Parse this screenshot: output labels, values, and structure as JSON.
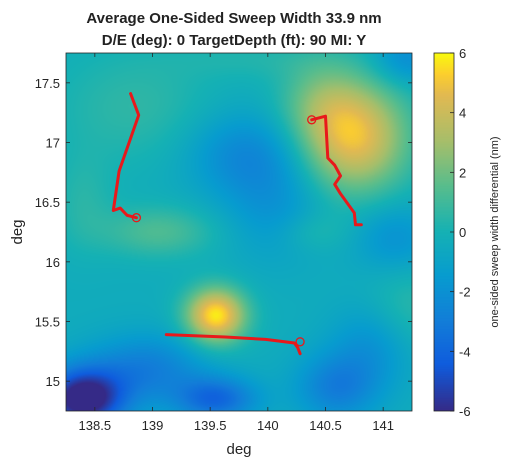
{
  "chart_data": {
    "type": "heatmap",
    "title_line1": "Average One-Sided Sweep Width 33.9 nm",
    "title_line2": "D/E (deg): 0 TargetDepth (ft): 90 MI: Y",
    "xlabel": "deg",
    "ylabel": "deg",
    "colorbar_label": "one-sided sweep width differential (nm)",
    "xlim": [
      138.25,
      141.25
    ],
    "ylim": [
      14.75,
      17.75
    ],
    "clim": [
      -6,
      6
    ],
    "colormap": "parula",
    "x_ticks": [
      {
        "value": 138.5,
        "label": "138.5"
      },
      {
        "value": 139,
        "label": "139"
      },
      {
        "value": 139.5,
        "label": "139.5"
      },
      {
        "value": 140,
        "label": "140"
      },
      {
        "value": 140.5,
        "label": "140.5"
      },
      {
        "value": 141,
        "label": "141"
      }
    ],
    "y_ticks": [
      {
        "value": 15,
        "label": "15"
      },
      {
        "value": 15.5,
        "label": "15.5"
      },
      {
        "value": 16,
        "label": "16"
      },
      {
        "value": 16.5,
        "label": "16.5"
      },
      {
        "value": 17,
        "label": "17"
      },
      {
        "value": 17.5,
        "label": "17.5"
      }
    ],
    "colorbar_ticks": [
      {
        "value": 6,
        "label": "6"
      },
      {
        "value": 4,
        "label": "4"
      },
      {
        "value": 2,
        "label": "2"
      },
      {
        "value": 0,
        "label": "0"
      },
      {
        "value": -2,
        "label": "-2"
      },
      {
        "value": -4,
        "label": "-4"
      },
      {
        "value": -6,
        "label": "-6"
      }
    ],
    "field": {
      "base": -0.4,
      "components": [
        {
          "x": 140.75,
          "y": 17.05,
          "sx": 0.32,
          "sy": 0.32,
          "a": 5.2
        },
        {
          "x": 140.45,
          "y": 17.35,
          "sx": 0.25,
          "sy": 0.25,
          "a": 1.6
        },
        {
          "x": 139.55,
          "y": 15.55,
          "sx": 0.18,
          "sy": 0.16,
          "a": 6.2
        },
        {
          "x": 139.05,
          "y": 16.25,
          "sx": 0.35,
          "sy": 0.15,
          "a": 1.7
        },
        {
          "x": 138.4,
          "y": 16.5,
          "sx": 0.18,
          "sy": 0.28,
          "a": 0.8
        },
        {
          "x": 138.85,
          "y": 17.3,
          "sx": 0.5,
          "sy": 0.35,
          "a": 1.0
        },
        {
          "x": 139.9,
          "y": 17.7,
          "sx": 0.5,
          "sy": 0.12,
          "a": 0.6
        },
        {
          "x": 141.2,
          "y": 15.6,
          "sx": 0.25,
          "sy": 0.25,
          "a": 1.0
        },
        {
          "x": 140.4,
          "y": 16.25,
          "sx": 0.22,
          "sy": 0.12,
          "a": 0.8
        },
        {
          "x": 138.4,
          "y": 14.85,
          "sx": 0.25,
          "sy": 0.18,
          "a": -6.5
        },
        {
          "x": 138.95,
          "y": 15.1,
          "sx": 0.35,
          "sy": 0.2,
          "a": -2.5
        },
        {
          "x": 139.55,
          "y": 14.85,
          "sx": 0.25,
          "sy": 0.13,
          "a": -3.5
        },
        {
          "x": 140.6,
          "y": 14.95,
          "sx": 0.25,
          "sy": 0.2,
          "a": -2.5
        },
        {
          "x": 139.8,
          "y": 16.9,
          "sx": 0.35,
          "sy": 0.25,
          "a": -2.0
        },
        {
          "x": 140.05,
          "y": 16.45,
          "sx": 0.3,
          "sy": 0.3,
          "a": -1.3
        },
        {
          "x": 141.1,
          "y": 16.2,
          "sx": 0.25,
          "sy": 0.2,
          "a": -1.5
        },
        {
          "x": 141.2,
          "y": 17.7,
          "sx": 0.2,
          "sy": 0.15,
          "a": -1.8
        },
        {
          "x": 140.9,
          "y": 15.3,
          "sx": 0.25,
          "sy": 0.25,
          "a": -1.5
        }
      ]
    },
    "tracks": [
      {
        "points": [
          [
            138.81,
            17.41
          ],
          [
            138.88,
            17.23
          ],
          [
            138.71,
            16.76
          ],
          [
            138.66,
            16.43
          ],
          [
            138.72,
            16.45
          ],
          [
            138.78,
            16.39
          ],
          [
            138.86,
            16.37
          ]
        ],
        "start_marker": [
          138.86,
          16.37
        ]
      },
      {
        "points": [
          [
            140.38,
            17.19
          ],
          [
            140.5,
            17.22
          ],
          [
            140.52,
            16.87
          ],
          [
            140.58,
            16.81
          ],
          [
            140.63,
            16.72
          ],
          [
            140.58,
            16.65
          ],
          [
            140.63,
            16.57
          ],
          [
            140.75,
            16.41
          ],
          [
            140.76,
            16.31
          ],
          [
            140.81,
            16.31
          ]
        ],
        "start_marker": [
          140.38,
          17.19
        ]
      },
      {
        "points": [
          [
            139.12,
            15.39
          ],
          [
            139.63,
            15.37
          ],
          [
            139.98,
            15.35
          ],
          [
            140.23,
            15.32
          ],
          [
            140.26,
            15.28
          ],
          [
            140.28,
            15.23
          ]
        ],
        "start_marker": [
          140.28,
          15.33
        ]
      }
    ],
    "track_color": "#e8191b",
    "grid": false,
    "legend": "none"
  }
}
